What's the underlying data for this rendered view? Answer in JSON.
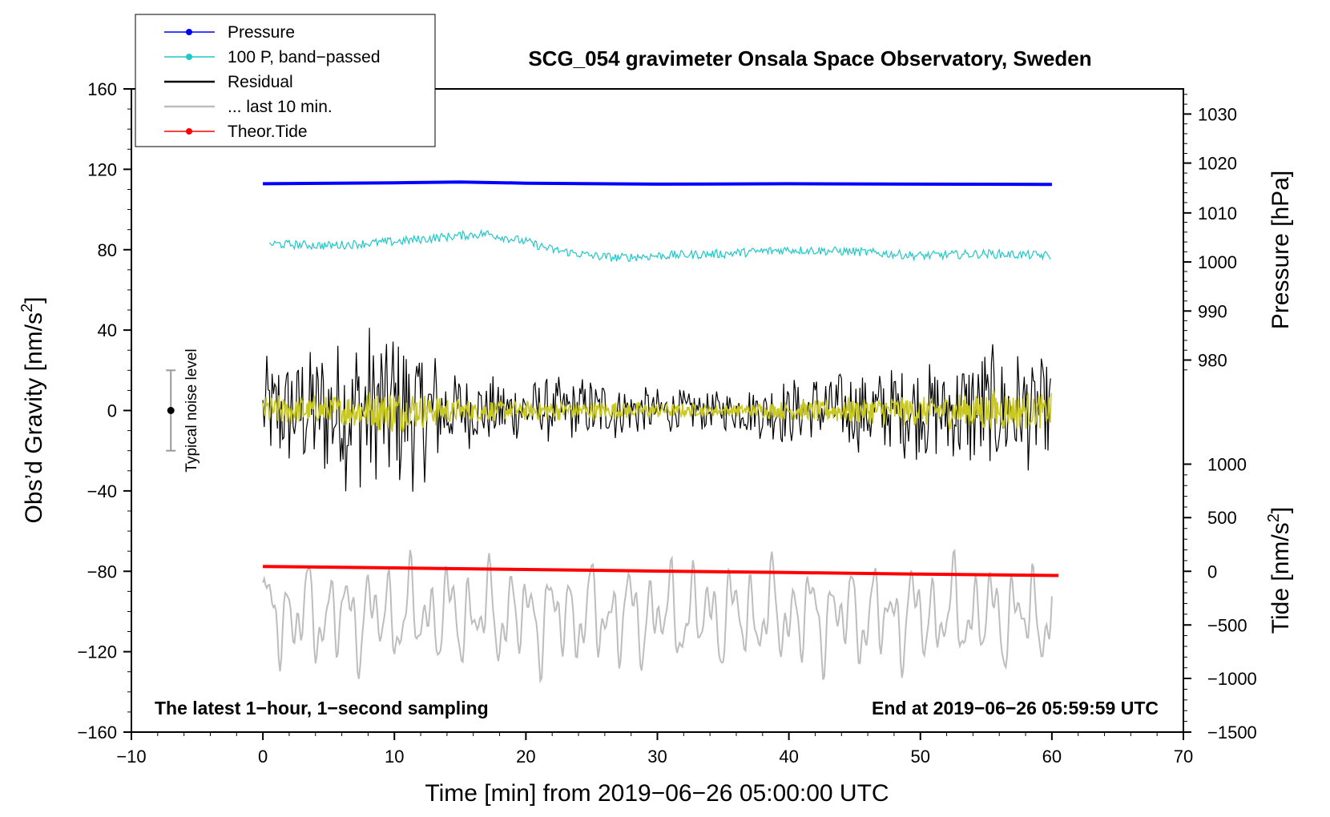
{
  "chart_data": {
    "type": "line",
    "title": "SCG_054 gravimeter Onsala Space Observatory, Sweden",
    "xlabel": "Time [min] from 2019−06−26 05:00:00 UTC",
    "ylabel_left_main": "Obs’d Gravity [nm/s",
    "ylabel_left_sup": "2",
    "ylabel_left_end": "]",
    "ylabel_right_top": "Pressure [hPa]",
    "ylabel_right_bottom_main": "Tide [nm/s",
    "ylabel_right_bottom_sup": "2",
    "ylabel_right_bottom_end": "]",
    "xlim": [
      -10,
      70
    ],
    "ylim_left": [
      -160,
      160
    ],
    "x_ticks": [
      -10,
      0,
      10,
      20,
      30,
      40,
      50,
      60,
      70
    ],
    "x_tick_labels": [
      "−10",
      "0",
      "10",
      "20",
      "30",
      "40",
      "50",
      "60",
      "70"
    ],
    "y_ticks_left": [
      160,
      120,
      80,
      40,
      0,
      -40,
      -80,
      -120,
      -160
    ],
    "y_tick_labels_left": [
      "160",
      "120",
      "80",
      "40",
      "0",
      "−40",
      "−80",
      "−120",
      "−160"
    ],
    "pressure_axis": {
      "ticks": [
        1030,
        1020,
        1010,
        1000,
        990,
        980
      ],
      "tick_labels": [
        "1030",
        "1020",
        "1010",
        "1000",
        "990",
        "980"
      ],
      "gravity_equivalent": [
        147.5,
        123.1,
        98.3,
        73.9,
        49.5,
        25.1
      ]
    },
    "tide_axis": {
      "ticks": [
        1000,
        500,
        0,
        -500,
        -1000,
        -1500
      ],
      "tick_labels": [
        "1000",
        "500",
        "0",
        "−500",
        "−1000",
        "−1500"
      ],
      "gravity_equivalent": [
        -26.7,
        -53.3,
        -80,
        -106.7,
        -133.3,
        -160
      ]
    },
    "legend": [
      {
        "label": "Pressure",
        "color": "#0000ff",
        "marker": "dot"
      },
      {
        "label": "100 P, band−passed",
        "color": "#20c8c8",
        "marker": "dot"
      },
      {
        "label": "Residual",
        "color": "#000000",
        "marker": "none"
      },
      {
        "label": "... last 10 min.",
        "color": "#bdbdbd",
        "marker": "none"
      },
      {
        "label": "Theor.Tide",
        "color": "#ff0000",
        "marker": "dot"
      }
    ],
    "series": [
      {
        "name": "Pressure",
        "color": "#0000ff",
        "x": [
          0,
          10,
          15,
          20,
          30,
          40,
          50,
          60
        ],
        "y": [
          112.8,
          113.3,
          113.7,
          113.1,
          112.6,
          112.8,
          112.6,
          112.5
        ]
      },
      {
        "name": "100 P, band−passed",
        "color": "#20c8c8",
        "x": [
          0,
          5,
          10,
          15,
          17,
          20,
          22,
          25,
          27,
          30,
          35,
          40,
          45,
          50,
          55,
          60
        ],
        "y": [
          83,
          82,
          84,
          87,
          88,
          84,
          80,
          77,
          76,
          77,
          78,
          80,
          79,
          77,
          78,
          77
        ]
      },
      {
        "name": "Residual",
        "color": "#000000",
        "x": [
          0,
          5,
          10,
          15,
          20,
          25,
          30,
          35,
          40,
          45,
          50,
          55,
          60
        ],
        "y": [
          0,
          0,
          0,
          0,
          0,
          0,
          0,
          0,
          0,
          0,
          0,
          0,
          0
        ],
        "amplitude": [
          28,
          38,
          50,
          20,
          16,
          18,
          12,
          10,
          18,
          22,
          25,
          35,
          28
        ]
      },
      {
        "name": "... last 10 min.",
        "color": "#bdbdbd",
        "x": [
          0,
          60
        ],
        "y": [
          -102,
          -102
        ],
        "amplitude": [
          26,
          26
        ]
      },
      {
        "name": "Residual (filtered)",
        "color": "#c8c820",
        "x": [
          0,
          5,
          10,
          15,
          20,
          25,
          30,
          35,
          40,
          45,
          50,
          55,
          60
        ],
        "y": [
          0,
          0,
          0,
          0,
          0,
          0,
          0,
          0,
          0,
          0,
          0,
          0,
          0
        ],
        "amplitude": [
          8,
          8,
          12,
          6,
          5,
          5,
          4,
          3,
          5,
          7,
          8,
          11,
          9
        ]
      },
      {
        "name": "Theor.Tide",
        "color": "#ff0000",
        "x": [
          0,
          10,
          20,
          30,
          40,
          50,
          60.5
        ],
        "y": [
          -77.6,
          -78.3,
          -79.1,
          -79.9,
          -80.6,
          -81.4,
          -82.1
        ]
      }
    ],
    "noise_level": {
      "label": "Typical noise level",
      "x": -7,
      "center": 0,
      "range": [
        -20,
        20
      ]
    },
    "annotations": {
      "bottom_left": "The latest 1−hour, 1−second sampling",
      "bottom_right": "End at 2019−06−26 05:59:59 UTC"
    }
  }
}
